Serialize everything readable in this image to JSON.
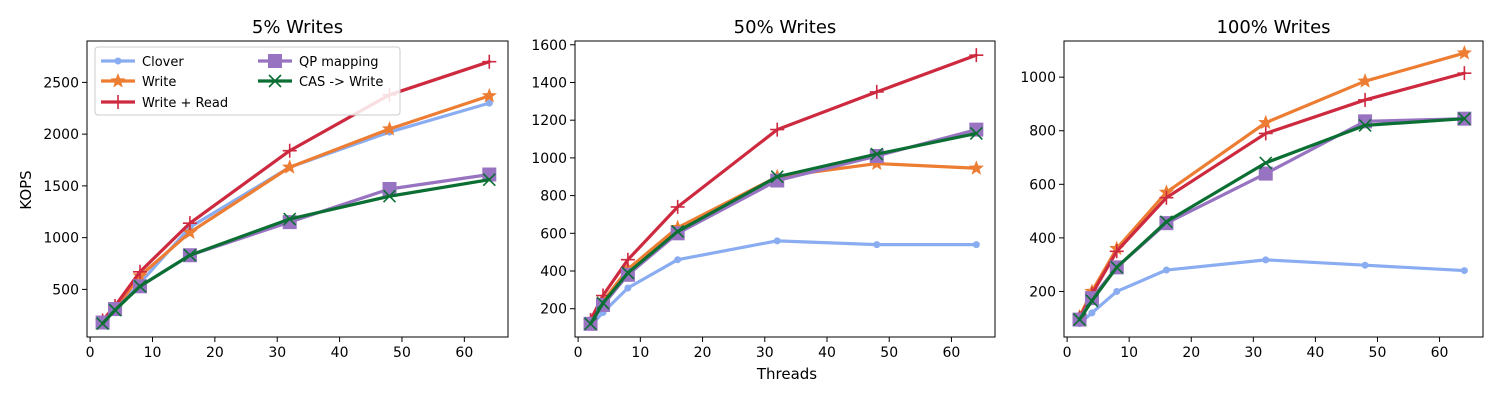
{
  "figure": {
    "xlabel": "Threads",
    "ylabel": "KOPS"
  },
  "legend_position": "top-left",
  "chart_data": [
    {
      "type": "line",
      "title": "5% Writes",
      "xlim": [
        -0.5,
        67
      ],
      "ylim": [
        40,
        2900
      ],
      "xticks": [
        0,
        10,
        20,
        30,
        40,
        50,
        60
      ],
      "yticks": [
        500,
        1000,
        1500,
        2000,
        2500
      ],
      "x": [
        2,
        4,
        8,
        16,
        32,
        48,
        64
      ],
      "legend": true,
      "series": [
        {
          "name": "Clover",
          "color": "#8aacf0",
          "marker": "circle",
          "values": [
            180,
            300,
            560,
            1100,
            1680,
            2020,
            2300
          ]
        },
        {
          "name": "Write",
          "color": "#ec7d32",
          "marker": "star",
          "values": [
            190,
            310,
            630,
            1050,
            1680,
            2050,
            2370
          ]
        },
        {
          "name": "Write + Read",
          "color": "#cd2a40",
          "marker": "plus",
          "values": [
            200,
            340,
            670,
            1140,
            1840,
            2380,
            2700
          ]
        },
        {
          "name": "QP mapping",
          "color": "#9773c1",
          "marker": "square",
          "values": [
            180,
            310,
            530,
            830,
            1150,
            1470,
            1610
          ]
        },
        {
          "name": "CAS -> Write",
          "color": "#0b6f34",
          "marker": "x",
          "values": [
            170,
            300,
            530,
            830,
            1180,
            1400,
            1560
          ]
        }
      ]
    },
    {
      "type": "line",
      "title": "50% Writes",
      "xlim": [
        -0.5,
        67
      ],
      "ylim": [
        50,
        1620
      ],
      "xticks": [
        0,
        10,
        20,
        30,
        40,
        50,
        60
      ],
      "yticks": [
        200,
        400,
        600,
        800,
        1000,
        1200,
        1400,
        1600
      ],
      "x": [
        2,
        4,
        8,
        16,
        32,
        48,
        64
      ],
      "legend": false,
      "series": [
        {
          "name": "Clover",
          "color": "#8aacf0",
          "marker": "circle",
          "values": [
            110,
            180,
            310,
            460,
            560,
            540,
            540
          ]
        },
        {
          "name": "Write",
          "color": "#ec7d32",
          "marker": "star",
          "values": [
            130,
            240,
            410,
            630,
            900,
            970,
            945
          ]
        },
        {
          "name": "Write + Read",
          "color": "#cd2a40",
          "marker": "plus",
          "values": [
            140,
            270,
            460,
            740,
            1150,
            1350,
            1545
          ]
        },
        {
          "name": "QP mapping",
          "color": "#9773c1",
          "marker": "square",
          "values": [
            120,
            220,
            380,
            600,
            880,
            1010,
            1150
          ]
        },
        {
          "name": "CAS -> Write",
          "color": "#0b6f34",
          "marker": "x",
          "values": [
            120,
            230,
            390,
            610,
            900,
            1020,
            1130
          ]
        }
      ]
    },
    {
      "type": "line",
      "title": "100% Writes",
      "xlim": [
        -0.5,
        67
      ],
      "ylim": [
        30,
        1135
      ],
      "xticks": [
        0,
        10,
        20,
        30,
        40,
        50,
        60
      ],
      "yticks": [
        200,
        400,
        600,
        800,
        1000
      ],
      "x": [
        2,
        4,
        8,
        16,
        32,
        48,
        64
      ],
      "legend": false,
      "series": [
        {
          "name": "Clover",
          "color": "#8aacf0",
          "marker": "circle",
          "values": [
            80,
            120,
            200,
            280,
            318,
            298,
            278
          ]
        },
        {
          "name": "Write",
          "color": "#ec7d32",
          "marker": "star",
          "values": [
            105,
            200,
            360,
            570,
            830,
            985,
            1090
          ]
        },
        {
          "name": "Write + Read",
          "color": "#cd2a40",
          "marker": "plus",
          "values": [
            100,
            190,
            350,
            550,
            790,
            915,
            1015
          ]
        },
        {
          "name": "QP mapping",
          "color": "#9773c1",
          "marker": "square",
          "values": [
            95,
            175,
            290,
            455,
            640,
            835,
            845
          ]
        },
        {
          "name": "CAS -> Write",
          "color": "#0b6f34",
          "marker": "x",
          "values": [
            95,
            165,
            290,
            460,
            680,
            820,
            845
          ]
        }
      ]
    }
  ]
}
